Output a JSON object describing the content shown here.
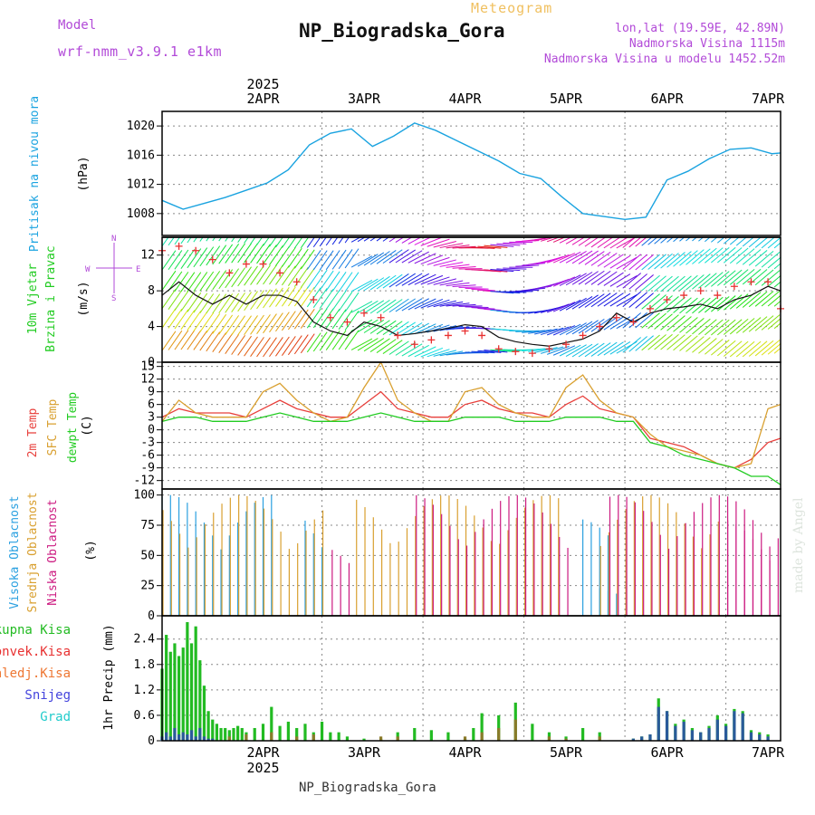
{
  "header": {
    "model_label": "Model",
    "model_name": "wrf-nmm_v3.9.1 e1km",
    "meteogram_label": "Meteogram",
    "station": "NP_Biogradska_Gora",
    "lonlat": "lon,lat (19.59E, 42.89N)",
    "altitude": "Nadmorska Visina 1115m",
    "model_altitude": "Nadmorska Visina u modelu 1452.52m"
  },
  "footer": {
    "station": "NP_Biogradska_Gora",
    "signature": "made by Angel"
  },
  "time_axis": {
    "year": "2025",
    "labels": [
      "2APR",
      "3APR",
      "4APR",
      "5APR",
      "6APR",
      "7APR"
    ],
    "start_hour": -14,
    "end_hour": 133
  },
  "colors": {
    "pressure": "#1aa3e0",
    "temp2m": "#e8403c",
    "sfc_temp": "#d9a030",
    "dewpoint": "#22cc22",
    "high_cloud": "#2aa0e0",
    "mid_cloud": "#d9a030",
    "low_cloud": "#cc1a80",
    "total_precip": "#22bb22",
    "conv_precip": "#e83030",
    "frozen_precip": "#ee7733",
    "snow": "#4444dd",
    "graupel": "#22cccc",
    "label_purple": "#b24ad8",
    "meteogram_title": "#f0c060"
  },
  "chart_data": [
    {
      "type": "line",
      "panel": "pressure",
      "ylabel": "Pritisak na nivou mora",
      "yunit": "(hPa)",
      "ylim": [
        1005,
        1022
      ],
      "yticks": [
        1008,
        1012,
        1016,
        1020
      ],
      "grid": true,
      "series": [
        {
          "name": "Pritisak na nivou mora",
          "x": [
            -14,
            -9,
            -4,
            1,
            6,
            11,
            16,
            21,
            26,
            31,
            36,
            41,
            46,
            51,
            56,
            61,
            66,
            71,
            76,
            81,
            86,
            91,
            96,
            101,
            106,
            111,
            116,
            121,
            126,
            131,
            133
          ],
          "y": [
            1009.8,
            1008.6,
            1009.4,
            1010.2,
            1011.2,
            1012.2,
            1014.0,
            1017.4,
            1019.0,
            1019.6,
            1017.2,
            1018.6,
            1020.4,
            1019.4,
            1018.0,
            1016.6,
            1015.2,
            1013.5,
            1012.8,
            1010.3,
            1008.0,
            1007.6,
            1007.2,
            1007.5,
            1012.6,
            1013.8,
            1015.5,
            1016.8,
            1017.0,
            1016.2,
            1016.3
          ]
        }
      ]
    },
    {
      "type": "line",
      "panel": "wind",
      "ylabel": "10m Vjetar Brzina i Pravac",
      "yunit": "(m/s)",
      "compass": "N / W E / S",
      "ylim": [
        0,
        14
      ],
      "yticks": [
        0,
        4,
        8,
        12
      ],
      "grid": true,
      "series": [
        {
          "name": "10m wind speed",
          "x": [
            -14,
            -10,
            -6,
            -2,
            2,
            6,
            10,
            14,
            18,
            22,
            26,
            30,
            34,
            38,
            42,
            46,
            50,
            54,
            58,
            62,
            66,
            70,
            74,
            78,
            82,
            86,
            90,
            94,
            98,
            102,
            106,
            110,
            114,
            118,
            122,
            126,
            130,
            133
          ],
          "y": [
            7.5,
            9.0,
            7.5,
            6.5,
            7.5,
            6.5,
            7.5,
            7.5,
            6.8,
            4.5,
            3.5,
            3.0,
            4.5,
            4.0,
            3.0,
            3.2,
            3.5,
            3.8,
            4.2,
            4.0,
            2.8,
            2.3,
            2.0,
            1.8,
            2.2,
            2.6,
            3.5,
            5.5,
            4.5,
            5.5,
            6.0,
            6.2,
            6.5,
            6.0,
            7.0,
            7.5,
            8.5,
            8.0
          ]
        },
        {
          "name": "wind gust",
          "x": [
            -14,
            -10,
            -6,
            -2,
            2,
            6,
            10,
            14,
            18,
            22,
            26,
            30,
            34,
            38,
            42,
            46,
            50,
            54,
            58,
            62,
            66,
            70,
            74,
            78,
            82,
            86,
            90,
            94,
            98,
            102,
            106,
            110,
            114,
            118,
            122,
            126,
            130,
            133
          ],
          "y": [
            12.5,
            13.0,
            12.5,
            11.5,
            10.0,
            11.0,
            11.0,
            10.0,
            9.0,
            7.0,
            5.0,
            4.5,
            5.5,
            5.0,
            3.0,
            2.0,
            2.5,
            3.0,
            3.5,
            3.0,
            1.5,
            1.2,
            1.0,
            1.5,
            2.0,
            3.0,
            4.0,
            5.0,
            4.5,
            6.0,
            7.0,
            7.5,
            8.0,
            7.5,
            8.5,
            9.0,
            9.0,
            6.0
          ]
        }
      ]
    },
    {
      "type": "line",
      "panel": "temperature",
      "ylabel": "2m Temp / SFC Temp / dewpt Temp",
      "yunit": "(C)",
      "ylim": [
        -14,
        16
      ],
      "yticks": [
        -12,
        -9,
        -6,
        -3,
        0,
        3,
        6,
        9,
        12,
        15
      ],
      "grid": true,
      "series": [
        {
          "name": "2m Temp",
          "x": [
            -14,
            -10,
            -6,
            -2,
            2,
            6,
            10,
            14,
            18,
            22,
            26,
            30,
            34,
            38,
            42,
            46,
            50,
            54,
            58,
            62,
            66,
            70,
            74,
            78,
            82,
            86,
            90,
            94,
            98,
            102,
            106,
            110,
            114,
            118,
            122,
            126,
            130,
            133
          ],
          "y": [
            3,
            5,
            4,
            4,
            4,
            3,
            5,
            7,
            5,
            4,
            3,
            3,
            6,
            9,
            5,
            4,
            3,
            3,
            6,
            7,
            5,
            4,
            4,
            3,
            6,
            8,
            5,
            4,
            3,
            -2,
            -3,
            -4,
            -6,
            -8,
            -9,
            -7,
            -3,
            -2
          ]
        },
        {
          "name": "SFC Temp",
          "x": [
            -14,
            -10,
            -6,
            -2,
            2,
            6,
            10,
            14,
            18,
            22,
            26,
            30,
            34,
            38,
            42,
            46,
            50,
            54,
            58,
            62,
            66,
            70,
            74,
            78,
            82,
            86,
            90,
            94,
            98,
            102,
            106,
            110,
            114,
            118,
            122,
            126,
            130,
            133
          ],
          "y": [
            2,
            7,
            4,
            3,
            3,
            3,
            9,
            11,
            7,
            4,
            2,
            3,
            10,
            16,
            7,
            4,
            2,
            2,
            9,
            10,
            6,
            4,
            3,
            3,
            10,
            13,
            7,
            4,
            3,
            -1,
            -4,
            -5,
            -6,
            -8,
            -9,
            -8,
            5,
            6
          ]
        },
        {
          "name": "dewpt Temp",
          "x": [
            -14,
            -10,
            -6,
            -2,
            2,
            6,
            10,
            14,
            18,
            22,
            26,
            30,
            34,
            38,
            42,
            46,
            50,
            54,
            58,
            62,
            66,
            70,
            74,
            78,
            82,
            86,
            90,
            94,
            98,
            102,
            106,
            110,
            114,
            118,
            122,
            126,
            130,
            133
          ],
          "y": [
            2,
            3,
            3,
            2,
            2,
            2,
            3,
            4,
            3,
            2,
            2,
            2,
            3,
            4,
            3,
            2,
            2,
            2,
            3,
            3,
            3,
            2,
            2,
            2,
            3,
            3,
            3,
            2,
            2,
            -3,
            -4,
            -6,
            -7,
            -8,
            -9,
            -11,
            -11,
            -13
          ]
        }
      ]
    },
    {
      "type": "bar",
      "panel": "clouds",
      "ylabel": "Visoka Oblacnost / Srednja Oblacnost / Niska Oblacnost",
      "yunit": "(%)",
      "ylim": [
        0,
        105
      ],
      "yticks": [
        0,
        25,
        50,
        75,
        100
      ],
      "grid": true,
      "series": [
        {
          "name": "Visoka Oblacnost",
          "segments": [
            [
              -14,
              12,
              100
            ],
            [
              20,
              25,
              100
            ],
            [
              86,
              92,
              80
            ],
            [
              90,
              95,
              25
            ]
          ]
        },
        {
          "name": "Srednja Oblacnost",
          "segments": [
            [
              -14,
              14,
              100
            ],
            [
              16,
              25,
              95
            ],
            [
              32,
              80,
              100
            ],
            [
              90,
              118,
              100
            ]
          ]
        },
        {
          "name": "Niska Oblacnost",
          "segments": [
            [
              26,
              30,
              60
            ],
            [
              46,
              82,
              100
            ],
            [
              92,
              132,
              100
            ],
            [
              120,
              130,
              80
            ]
          ]
        }
      ]
    },
    {
      "type": "bar",
      "panel": "precipitation",
      "ylabel": "1hr Precip",
      "yunit": "(mm)",
      "ylim": [
        0,
        2.95
      ],
      "yticks": [
        0,
        0.6,
        1.2,
        1.8,
        2.4
      ],
      "grid": true,
      "legend": [
        "Ukupna Kisa",
        "Konvek.Kisa",
        "Zaledj.Kisa",
        "Snijeg",
        "Grad"
      ],
      "series": [
        {
          "name": "Ukupna Kisa",
          "x": [
            -14,
            -13,
            -12,
            -11,
            -10,
            -9,
            -8,
            -7,
            -6,
            -5,
            -4,
            -3,
            -2,
            -1,
            0,
            1,
            2,
            3,
            4,
            5,
            6,
            8,
            10,
            12,
            14,
            16,
            18,
            20,
            22,
            24,
            26,
            28,
            30,
            34,
            38,
            42,
            46,
            50,
            54,
            58,
            60,
            62,
            66,
            70,
            74,
            78,
            82,
            86,
            90,
            98,
            100,
            102,
            104,
            106,
            108,
            110,
            112,
            114,
            116,
            118,
            120,
            122,
            124,
            126,
            128,
            130
          ],
          "y": [
            1.7,
            2.5,
            2.1,
            2.3,
            2.0,
            2.2,
            2.8,
            2.3,
            2.7,
            1.9,
            1.3,
            0.7,
            0.5,
            0.4,
            0.3,
            0.3,
            0.25,
            0.3,
            0.35,
            0.3,
            0.2,
            0.3,
            0.4,
            0.8,
            0.35,
            0.45,
            0.3,
            0.4,
            0.2,
            0.45,
            0.2,
            0.2,
            0.1,
            0.05,
            0.05,
            0.2,
            0.3,
            0.25,
            0.2,
            0.05,
            0.3,
            0.65,
            0.6,
            0.9,
            0.4,
            0.2,
            0.1,
            0.3,
            0.2,
            0.05,
            0.1,
            0.15,
            1.0,
            0.7,
            0.4,
            0.5,
            0.3,
            0.2,
            0.35,
            0.6,
            0.4,
            0.75,
            0.7,
            0.25,
            0.2,
            0.15
          ]
        },
        {
          "name": "Konvek.Kisa",
          "x": [
            2,
            6,
            12,
            18,
            22,
            38,
            42,
            58,
            62,
            66,
            70,
            78,
            82,
            90
          ],
          "y": [
            0.1,
            0.15,
            0.2,
            0.1,
            0.15,
            0.1,
            0.1,
            0.1,
            0.2,
            0.3,
            0.5,
            0.1,
            0.05,
            0.1
          ]
        },
        {
          "name": "Snijeg",
          "x": [
            -14,
            -13,
            -12,
            -11,
            -10,
            -9,
            -8,
            -7,
            -6,
            -5,
            -4,
            -3,
            -2,
            98,
            100,
            102,
            104,
            106,
            108,
            110,
            112,
            114,
            116,
            118,
            120,
            122,
            124,
            126,
            128,
            130
          ],
          "y": [
            0.1,
            0.2,
            0.1,
            0.3,
            0.15,
            0.2,
            0.15,
            0.25,
            0.1,
            0.3,
            0.1,
            0.05,
            0.05,
            0.05,
            0.1,
            0.15,
            0.8,
            0.7,
            0.35,
            0.45,
            0.25,
            0.2,
            0.3,
            0.5,
            0.35,
            0.7,
            0.65,
            0.2,
            0.15,
            0.1
          ]
        }
      ]
    }
  ]
}
